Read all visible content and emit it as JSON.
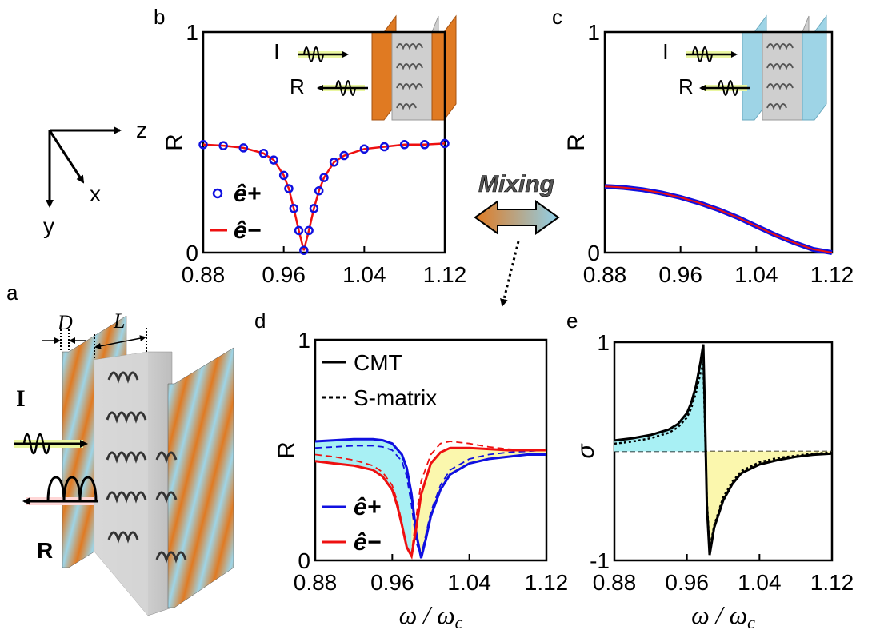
{
  "panel_labels": {
    "a": "a",
    "b": "b",
    "c": "c",
    "d": "d",
    "e": "e"
  },
  "axes_diagram": {
    "z": "z",
    "x": "x",
    "y": "y"
  },
  "panel_a": {
    "D": "D",
    "L": "L",
    "incident": "I",
    "reflected": "R"
  },
  "inset": {
    "incident": "I",
    "reflected": "R"
  },
  "mixing": "Mixing",
  "colors": {
    "blue": "#1010e0",
    "red": "#ee1010",
    "cyan_fill": "#a8f0f4",
    "yellow_fill": "#fbf7ad",
    "orange": "#e07a22",
    "light_blue": "#9ed4e6"
  },
  "chart_data": [
    {
      "panel": "b",
      "type": "line",
      "xlim": [
        0.88,
        1.12
      ],
      "ylim": [
        0,
        1
      ],
      "xticks": [
        "0.88",
        "0.96",
        "1.04",
        "1.12"
      ],
      "yticks": [
        "0",
        "1"
      ],
      "ylabel": "R",
      "xlabel": "",
      "legend": {
        "placement": "bottom-left",
        "entries": [
          "ê+",
          "ê−"
        ]
      },
      "series": [
        {
          "name": "ê+",
          "style": "circles",
          "color": "#1010e0",
          "x": [
            0.88,
            0.9,
            0.92,
            0.94,
            0.95,
            0.96,
            0.965,
            0.97,
            0.975,
            0.98,
            0.985,
            0.99,
            0.995,
            1.0,
            1.01,
            1.02,
            1.04,
            1.06,
            1.08,
            1.1,
            1.12
          ],
          "y": [
            0.49,
            0.485,
            0.475,
            0.45,
            0.42,
            0.35,
            0.29,
            0.2,
            0.1,
            0.01,
            0.1,
            0.2,
            0.28,
            0.34,
            0.41,
            0.44,
            0.47,
            0.48,
            0.49,
            0.49,
            0.495
          ]
        },
        {
          "name": "ê−",
          "style": "line",
          "color": "#ee1010",
          "x": [
            0.88,
            0.9,
            0.92,
            0.94,
            0.95,
            0.96,
            0.965,
            0.97,
            0.975,
            0.98,
            0.985,
            0.99,
            0.995,
            1.0,
            1.01,
            1.02,
            1.04,
            1.06,
            1.08,
            1.1,
            1.12
          ],
          "y": [
            0.49,
            0.485,
            0.475,
            0.45,
            0.42,
            0.35,
            0.29,
            0.2,
            0.1,
            0.01,
            0.1,
            0.2,
            0.28,
            0.34,
            0.41,
            0.44,
            0.47,
            0.48,
            0.49,
            0.49,
            0.495
          ]
        }
      ]
    },
    {
      "panel": "c",
      "type": "line",
      "xlim": [
        0.88,
        1.12
      ],
      "ylim": [
        0,
        1
      ],
      "xticks": [
        "0.88",
        "0.96",
        "1.04",
        "1.12"
      ],
      "yticks": [
        "0",
        "1"
      ],
      "ylabel": "R",
      "xlabel": "",
      "series": [
        {
          "name": "ê+",
          "style": "circles",
          "color": "#1010e0",
          "x": [
            0.88,
            0.9,
            0.92,
            0.94,
            0.96,
            0.98,
            1.0,
            1.02,
            1.04,
            1.06,
            1.08,
            1.1,
            1.12
          ],
          "y": [
            0.3,
            0.295,
            0.285,
            0.27,
            0.25,
            0.225,
            0.195,
            0.16,
            0.12,
            0.08,
            0.045,
            0.015,
            0.0
          ]
        },
        {
          "name": "ê−",
          "style": "line",
          "color": "#ee1010",
          "x": [
            0.88,
            0.9,
            0.92,
            0.94,
            0.96,
            0.98,
            1.0,
            1.02,
            1.04,
            1.06,
            1.08,
            1.1,
            1.12
          ],
          "y": [
            0.3,
            0.295,
            0.285,
            0.27,
            0.25,
            0.225,
            0.195,
            0.16,
            0.12,
            0.08,
            0.045,
            0.015,
            0.0
          ]
        }
      ]
    },
    {
      "panel": "d",
      "type": "line",
      "xlim": [
        0.88,
        1.12
      ],
      "ylim": [
        0,
        1
      ],
      "xticks": [
        "0.88",
        "0.96",
        "1.04",
        "1.12"
      ],
      "yticks": [
        "0",
        "1"
      ],
      "ylabel": "R",
      "xlabel": "ω / ω_c",
      "legend_top": {
        "placement": "top-left",
        "entries": [
          "CMT",
          "S-matrix"
        ]
      },
      "legend_bottom": {
        "placement": "bottom-left",
        "entries": [
          "ê+",
          "ê−"
        ]
      },
      "series": [
        {
          "name": "ê+",
          "method": "CMT",
          "style": "solid",
          "color": "#1010e0",
          "x": [
            0.88,
            0.9,
            0.92,
            0.94,
            0.95,
            0.96,
            0.97,
            0.975,
            0.98,
            0.985,
            0.99,
            0.995,
            1.0,
            1.01,
            1.02,
            1.04,
            1.06,
            1.08,
            1.1,
            1.12
          ],
          "y": [
            0.54,
            0.545,
            0.55,
            0.55,
            0.545,
            0.53,
            0.48,
            0.42,
            0.3,
            0.12,
            0.01,
            0.1,
            0.2,
            0.32,
            0.39,
            0.44,
            0.46,
            0.47,
            0.48,
            0.48
          ]
        },
        {
          "name": "ê−",
          "method": "CMT",
          "style": "solid",
          "color": "#ee1010",
          "x": [
            0.88,
            0.9,
            0.92,
            0.94,
            0.95,
            0.96,
            0.965,
            0.97,
            0.975,
            0.98,
            0.985,
            0.99,
            1.0,
            1.01,
            1.02,
            1.04,
            1.06,
            1.08,
            1.1,
            1.12
          ],
          "y": [
            0.45,
            0.44,
            0.43,
            0.41,
            0.38,
            0.32,
            0.25,
            0.16,
            0.06,
            0.02,
            0.15,
            0.3,
            0.44,
            0.49,
            0.51,
            0.51,
            0.505,
            0.5,
            0.5,
            0.5
          ]
        },
        {
          "name": "ê+",
          "method": "S-matrix",
          "style": "dashed",
          "color": "#1010e0",
          "x": [
            0.88,
            0.9,
            0.92,
            0.94,
            0.95,
            0.96,
            0.97,
            0.975,
            0.98,
            0.985,
            0.99,
            0.995,
            1.0,
            1.01,
            1.02,
            1.04,
            1.06,
            1.08,
            1.1,
            1.12
          ],
          "y": [
            0.51,
            0.515,
            0.52,
            0.52,
            0.515,
            0.5,
            0.45,
            0.38,
            0.25,
            0.08,
            0.02,
            0.12,
            0.22,
            0.34,
            0.41,
            0.46,
            0.48,
            0.49,
            0.495,
            0.5
          ]
        },
        {
          "name": "ê−",
          "method": "S-matrix",
          "style": "dashed",
          "color": "#ee1010",
          "x": [
            0.88,
            0.9,
            0.92,
            0.94,
            0.95,
            0.96,
            0.965,
            0.97,
            0.975,
            0.98,
            0.985,
            0.99,
            1.0,
            1.01,
            1.02,
            1.04,
            1.06,
            1.08,
            1.1,
            1.12
          ],
          "y": [
            0.48,
            0.47,
            0.455,
            0.43,
            0.4,
            0.34,
            0.27,
            0.17,
            0.06,
            0.03,
            0.2,
            0.36,
            0.48,
            0.53,
            0.54,
            0.53,
            0.515,
            0.505,
            0.5,
            0.5
          ]
        }
      ]
    },
    {
      "panel": "e",
      "type": "line",
      "xlim": [
        0.88,
        1.12
      ],
      "ylim": [
        -1,
        1
      ],
      "xticks": [
        "0.88",
        "0.96",
        "1.04",
        "1.12"
      ],
      "yticks": [
        "-1",
        "1"
      ],
      "ylabel": "σ",
      "xlabel": "ω / ω_c",
      "series": [
        {
          "name": "CMT",
          "style": "solid",
          "color": "#000000",
          "x": [
            0.88,
            0.9,
            0.92,
            0.94,
            0.95,
            0.96,
            0.965,
            0.97,
            0.975,
            0.978,
            0.98,
            0.982,
            0.985,
            0.99,
            1.0,
            1.01,
            1.02,
            1.04,
            1.06,
            1.08,
            1.1,
            1.12
          ],
          "y": [
            0.1,
            0.12,
            0.15,
            0.2,
            0.25,
            0.35,
            0.45,
            0.6,
            0.82,
            0.98,
            0.3,
            -0.5,
            -0.95,
            -0.7,
            -0.45,
            -0.3,
            -0.2,
            -0.12,
            -0.08,
            -0.05,
            -0.03,
            -0.02
          ]
        },
        {
          "name": "S-matrix",
          "style": "dotted",
          "color": "#000000",
          "x": [
            0.88,
            0.9,
            0.92,
            0.94,
            0.95,
            0.96,
            0.965,
            0.97,
            0.975,
            0.978,
            0.98,
            0.982,
            0.985,
            0.99,
            1.0,
            1.01,
            1.02,
            1.04,
            1.06,
            1.08,
            1.1,
            1.12
          ],
          "y": [
            0.07,
            0.09,
            0.12,
            0.17,
            0.22,
            0.31,
            0.4,
            0.54,
            0.72,
            0.8,
            0.2,
            -0.45,
            -0.9,
            -0.68,
            -0.42,
            -0.28,
            -0.18,
            -0.1,
            -0.06,
            -0.04,
            -0.02,
            -0.01
          ]
        }
      ]
    }
  ]
}
